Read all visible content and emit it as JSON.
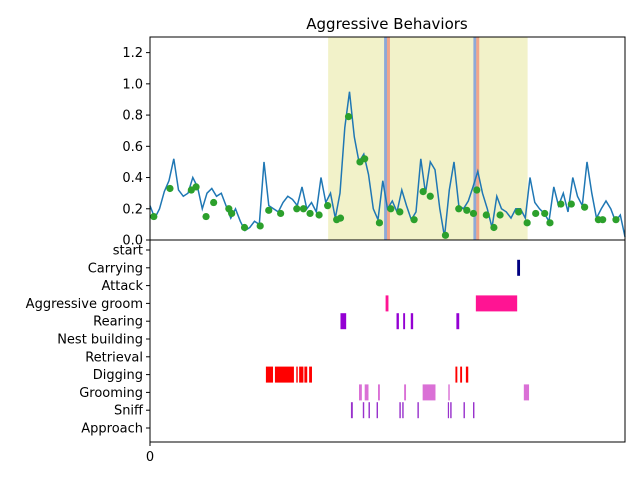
{
  "chart_data": [
    {
      "type": "line",
      "title": "Aggressive Behaviors",
      "ylim": [
        0,
        1.3
      ],
      "yticks": [
        "0.0",
        "0.2",
        "0.4",
        "0.6",
        "0.8",
        "1.0",
        "1.2"
      ],
      "ytick_values": [
        0,
        0.2,
        0.4,
        0.6,
        0.8,
        1.0,
        1.2
      ],
      "xlim": [
        0,
        100
      ],
      "line_color": "#1f77b4",
      "marker_color": "#2ca02c",
      "span_color": "#f2f2c9",
      "spans": [
        {
          "start": 37.5,
          "end": 79.5
        }
      ],
      "vlines": [
        {
          "x": 49.6,
          "color": "#8da9d8"
        },
        {
          "x": 50.2,
          "color": "#f0a58a"
        },
        {
          "x": 68.4,
          "color": "#8da9d8"
        },
        {
          "x": 69.0,
          "color": "#f0a58a"
        }
      ],
      "markers": [
        {
          "x": 0.8,
          "y": 0.15
        },
        {
          "x": 4.2,
          "y": 0.33
        },
        {
          "x": 8.7,
          "y": 0.32
        },
        {
          "x": 9.7,
          "y": 0.34
        },
        {
          "x": 11.8,
          "y": 0.15
        },
        {
          "x": 13.4,
          "y": 0.24
        },
        {
          "x": 16.6,
          "y": 0.2
        },
        {
          "x": 17.2,
          "y": 0.17
        },
        {
          "x": 19.9,
          "y": 0.08
        },
        {
          "x": 23.2,
          "y": 0.09
        },
        {
          "x": 25.0,
          "y": 0.19
        },
        {
          "x": 27.5,
          "y": 0.17
        },
        {
          "x": 30.9,
          "y": 0.2
        },
        {
          "x": 32.3,
          "y": 0.2
        },
        {
          "x": 33.7,
          "y": 0.17
        },
        {
          "x": 35.6,
          "y": 0.16
        },
        {
          "x": 37.4,
          "y": 0.22
        },
        {
          "x": 39.3,
          "y": 0.13
        },
        {
          "x": 40.1,
          "y": 0.14
        },
        {
          "x": 41.8,
          "y": 0.79
        },
        {
          "x": 44.2,
          "y": 0.5
        },
        {
          "x": 45.2,
          "y": 0.52
        },
        {
          "x": 48.3,
          "y": 0.11
        },
        {
          "x": 50.7,
          "y": 0.2
        },
        {
          "x": 52.6,
          "y": 0.18
        },
        {
          "x": 55.6,
          "y": 0.13
        },
        {
          "x": 57.5,
          "y": 0.31
        },
        {
          "x": 59.0,
          "y": 0.28
        },
        {
          "x": 62.2,
          "y": 0.03
        },
        {
          "x": 65.0,
          "y": 0.2
        },
        {
          "x": 66.7,
          "y": 0.19
        },
        {
          "x": 68.1,
          "y": 0.17
        },
        {
          "x": 68.8,
          "y": 0.32
        },
        {
          "x": 70.8,
          "y": 0.16
        },
        {
          "x": 72.4,
          "y": 0.08
        },
        {
          "x": 73.7,
          "y": 0.16
        },
        {
          "x": 77.6,
          "y": 0.18
        },
        {
          "x": 79.4,
          "y": 0.11
        },
        {
          "x": 81.2,
          "y": 0.17
        },
        {
          "x": 83.1,
          "y": 0.17
        },
        {
          "x": 84.2,
          "y": 0.11
        },
        {
          "x": 86.5,
          "y": 0.23
        },
        {
          "x": 88.7,
          "y": 0.23
        },
        {
          "x": 91.5,
          "y": 0.21
        },
        {
          "x": 94.4,
          "y": 0.13
        },
        {
          "x": 95.3,
          "y": 0.13
        },
        {
          "x": 98.1,
          "y": 0.13
        }
      ],
      "series": [
        {
          "x": [
            0,
            1,
            2,
            3,
            4,
            5,
            6,
            7,
            8,
            9,
            10,
            11,
            12,
            13,
            14,
            15,
            16,
            17,
            18,
            19,
            20,
            21,
            22,
            23,
            24,
            25,
            26,
            27,
            28,
            29,
            30,
            31,
            32,
            33,
            34,
            35,
            36,
            37,
            38,
            39,
            40,
            41,
            42,
            43,
            44,
            45,
            46,
            47,
            48,
            49,
            50,
            51,
            52,
            53,
            54,
            55,
            56,
            57,
            58,
            59,
            60,
            61,
            62,
            63,
            64,
            65,
            66,
            67,
            68,
            69,
            70,
            71,
            72,
            73,
            74,
            75,
            76,
            77,
            78,
            79,
            80,
            81,
            82,
            83,
            84,
            85,
            86,
            87,
            88,
            89,
            90,
            91,
            92,
            93,
            94,
            95,
            96,
            97,
            98,
            99,
            100
          ],
          "y": [
            0.22,
            0.14,
            0.2,
            0.31,
            0.38,
            0.52,
            0.32,
            0.28,
            0.3,
            0.4,
            0.34,
            0.2,
            0.3,
            0.33,
            0.28,
            0.3,
            0.22,
            0.14,
            0.2,
            0.12,
            0.06,
            0.08,
            0.12,
            0.1,
            0.5,
            0.22,
            0.2,
            0.18,
            0.24,
            0.28,
            0.26,
            0.22,
            0.34,
            0.2,
            0.24,
            0.18,
            0.4,
            0.24,
            0.3,
            0.14,
            0.3,
            0.72,
            0.95,
            0.66,
            0.5,
            0.55,
            0.42,
            0.2,
            0.13,
            0.38,
            0.2,
            0.25,
            0.18,
            0.32,
            0.22,
            0.13,
            0.18,
            0.52,
            0.3,
            0.5,
            0.45,
            0.2,
            0.02,
            0.32,
            0.5,
            0.22,
            0.2,
            0.25,
            0.34,
            0.44,
            0.3,
            0.2,
            0.08,
            0.28,
            0.2,
            0.18,
            0.14,
            0.2,
            0.2,
            0.14,
            0.4,
            0.24,
            0.2,
            0.17,
            0.12,
            0.34,
            0.22,
            0.3,
            0.18,
            0.4,
            0.28,
            0.22,
            0.5,
            0.3,
            0.14,
            0.2,
            0.25,
            0.2,
            0.12,
            0.16,
            0.02
          ]
        }
      ]
    },
    {
      "type": "event_raster",
      "xlim": [
        0,
        100
      ],
      "xticks": [
        "0"
      ],
      "xtick_values": [
        0
      ],
      "behaviors": [
        {
          "name": "start",
          "color": "#000000",
          "events": []
        },
        {
          "name": "Carrying",
          "color": "#000080",
          "events": [
            [
              77.3,
              77.9
            ]
          ]
        },
        {
          "name": "Attack",
          "color": "#000000",
          "events": []
        },
        {
          "name": "Aggressive groom",
          "color": "#ff1493",
          "events": [
            [
              49.6,
              50.2
            ],
            [
              68.6,
              77.3
            ]
          ]
        },
        {
          "name": "Rearing",
          "color": "#9400d3",
          "events": [
            [
              40.1,
              41.3
            ],
            [
              51.9,
              52.4
            ],
            [
              53.3,
              53.7
            ],
            [
              54.9,
              55.4
            ],
            [
              64.5,
              65.1
            ]
          ]
        },
        {
          "name": "Nest building",
          "color": "#000000",
          "events": []
        },
        {
          "name": "Retrieval",
          "color": "#000000",
          "events": []
        },
        {
          "name": "Digging",
          "color": "#ff0000",
          "events": [
            [
              24.4,
              25.9
            ],
            [
              26.3,
              30.3
            ],
            [
              30.8,
              31.1
            ],
            [
              31.4,
              32.3
            ],
            [
              32.5,
              33.1
            ],
            [
              33.5,
              34.1
            ],
            [
              64.3,
              64.7
            ],
            [
              65.3,
              65.7
            ],
            [
              66.5,
              67.0
            ]
          ]
        },
        {
          "name": "Grooming",
          "color": "#da70d6",
          "events": [
            [
              44.0,
              44.6
            ],
            [
              45.2,
              46.0
            ],
            [
              48.0,
              48.4
            ],
            [
              53.5,
              53.9
            ],
            [
              57.4,
              60.1
            ],
            [
              62.8,
              63.1
            ],
            [
              78.7,
              79.8
            ]
          ]
        },
        {
          "name": "Sniff",
          "color": "#9932cc",
          "events": [
            [
              42.3,
              42.7
            ],
            [
              44.8,
              45.1
            ],
            [
              46.0,
              46.3
            ],
            [
              47.7,
              48.0
            ],
            [
              52.5,
              52.8
            ],
            [
              53.1,
              53.4
            ],
            [
              56.3,
              56.6
            ],
            [
              62.7,
              62.9
            ],
            [
              63.2,
              63.5
            ],
            [
              66.0,
              66.3
            ],
            [
              68.0,
              68.3
            ]
          ]
        },
        {
          "name": "Approach",
          "color": "#000000",
          "events": []
        }
      ]
    }
  ]
}
